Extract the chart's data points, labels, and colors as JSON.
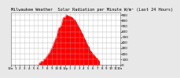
{
  "title": "Milwaukee Weather  Solar Radiation per Minute W/m² (Last 24 Hours)",
  "title_fontsize": 3.8,
  "background_color": "#e8e8e8",
  "plot_bg_color": "#ffffff",
  "grid_color": "#aaaaaa",
  "fill_color": "#ff0000",
  "line_color": "#dd0000",
  "y_ticks": [
    0,
    100,
    200,
    300,
    400,
    500,
    600,
    700,
    800,
    900
  ],
  "y_max": 950,
  "num_points": 1440,
  "x_tick_labels": [
    "12a",
    "1",
    "2",
    "3",
    "4",
    "5",
    "6",
    "7",
    "8",
    "9",
    "10",
    "11",
    "12p",
    "1",
    "2",
    "3",
    "4",
    "5",
    "6",
    "7",
    "8",
    "9",
    "10",
    "11",
    "12a"
  ],
  "tick_fontsize": 2.8,
  "ytick_fontsize": 3.0,
  "start_hour": 6.2,
  "end_hour": 19.5,
  "peak_hour": 12.8,
  "peak_value": 880
}
